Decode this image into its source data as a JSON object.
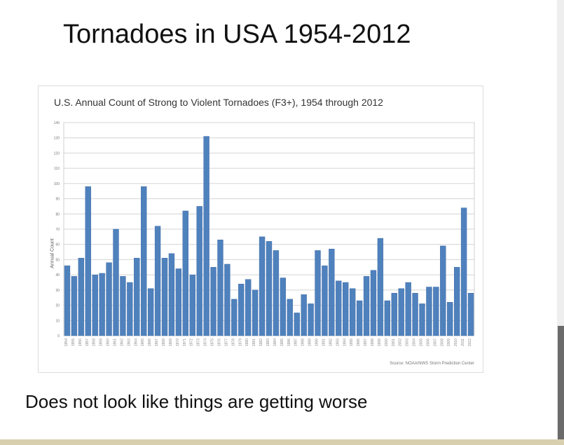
{
  "slide": {
    "title": "Tornadoes in USA 1954-2012",
    "caption": "Does not look like things are getting worse"
  },
  "colors": {
    "bar": "#4f81bd",
    "bar_edge": "#3a66a0",
    "grid": "#d4d4d4"
  },
  "chart_data": {
    "type": "bar",
    "title": "U.S. Annual Count of Strong to Violent Tornadoes (F3+), 1954 through 2012",
    "ylabel": "Annual Count",
    "xlabel": "",
    "source": "Source: NOAA/NWS Storm Prediction Center",
    "ylim": [
      0,
      140
    ],
    "yticks": [
      0,
      10,
      20,
      30,
      40,
      50,
      60,
      70,
      80,
      90,
      100,
      110,
      120,
      130,
      140
    ],
    "grid": true,
    "categories": [
      "1954",
      "1955",
      "1956",
      "1957",
      "1958",
      "1959",
      "1960",
      "1961",
      "1962",
      "1963",
      "1964",
      "1965",
      "1966",
      "1967",
      "1968",
      "1969",
      "1970",
      "1971",
      "1972",
      "1973",
      "1974",
      "1975",
      "1976",
      "1977",
      "1978",
      "1979",
      "1980",
      "1981",
      "1982",
      "1983",
      "1984",
      "1985",
      "1986",
      "1987",
      "1988",
      "1989",
      "1990",
      "1991",
      "1992",
      "1993",
      "1994",
      "1995",
      "1996",
      "1997",
      "1998",
      "1999",
      "2000",
      "2001",
      "2002",
      "2003",
      "2004",
      "2005",
      "2006",
      "2007",
      "2008",
      "2009",
      "2010",
      "2011",
      "2012"
    ],
    "values": [
      46,
      39,
      51,
      98,
      40,
      41,
      48,
      70,
      39,
      35,
      51,
      98,
      31,
      72,
      51,
      54,
      44,
      82,
      40,
      85,
      131,
      45,
      63,
      47,
      24,
      34,
      37,
      30,
      65,
      62,
      56,
      38,
      24,
      15,
      27,
      21,
      56,
      46,
      57,
      36,
      35,
      31,
      23,
      39,
      43,
      64,
      23,
      28,
      31,
      35,
      28,
      21,
      32,
      32,
      59,
      22,
      45,
      84,
      28
    ]
  }
}
